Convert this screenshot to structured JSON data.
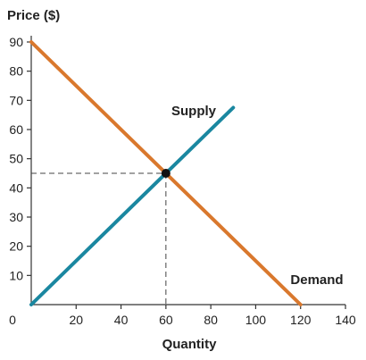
{
  "chart_data": {
    "type": "line",
    "title": "",
    "ylabel": "Price ($)",
    "xlabel": "Quantity",
    "xlim": [
      0,
      140
    ],
    "ylim": [
      0,
      90
    ],
    "x_ticks": [
      0,
      20,
      40,
      60,
      80,
      100,
      120,
      140
    ],
    "y_ticks": [
      10,
      20,
      30,
      40,
      50,
      60,
      70,
      80,
      90
    ],
    "grid": false,
    "series": [
      {
        "name": "Supply",
        "color": "#1a87a0",
        "x": [
          0,
          90
        ],
        "y": [
          0,
          67.5
        ]
      },
      {
        "name": "Demand",
        "color": "#d9782d",
        "x": [
          0,
          120
        ],
        "y": [
          90,
          0
        ]
      }
    ],
    "equilibrium": {
      "x": 60,
      "y": 45,
      "color": "#111111"
    }
  }
}
